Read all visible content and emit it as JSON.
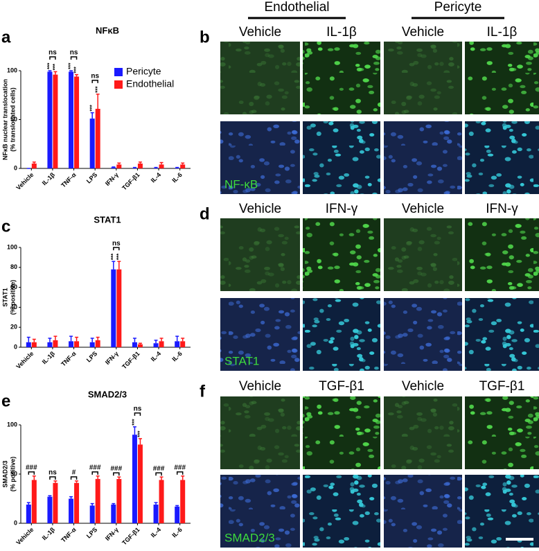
{
  "chart_data": [
    {
      "type": "bar",
      "panel_label": "a",
      "title": "NFκB",
      "y_label": [
        "NFκB nuclear translocation",
        "(% translocated cells)"
      ],
      "categories": [
        "Vehicle",
        "IL-1β",
        "TNF-α",
        "LPS",
        "IFN-γ",
        "TGF-β1",
        "IL-4",
        "IL-6"
      ],
      "series": [
        {
          "name": "Pericyte",
          "color": "#1a1aff",
          "values": [
            0,
            99,
            99,
            51,
            1,
            0.5,
            0.5,
            0.5
          ],
          "errors": [
            0,
            1,
            1,
            6,
            0.5,
            0.5,
            0.5,
            0.5
          ],
          "value_labels": [
            null,
            "***",
            "***",
            "***",
            null,
            null,
            null,
            null
          ]
        },
        {
          "name": "Endothelial",
          "color": "#ff1a1a",
          "values": [
            5,
            96,
            94,
            61,
            4,
            5,
            4,
            4
          ],
          "errors": [
            1.5,
            3,
            2,
            15,
            1.5,
            1.5,
            2,
            1.5
          ],
          "value_labels": [
            null,
            "***",
            "***",
            "***",
            null,
            null,
            null,
            null
          ]
        }
      ],
      "comparison_labels": [
        null,
        "ns",
        "ns",
        "ns",
        null,
        null,
        null,
        null
      ],
      "ylim": [
        0,
        100
      ],
      "yticks": [
        0,
        50,
        100
      ],
      "legend": "upper right"
    },
    {
      "type": "bar",
      "panel_label": "c",
      "title": "STAT1",
      "y_label": [
        "STAT1",
        "(% positive)"
      ],
      "categories": [
        "Vehicle",
        "IL-1β",
        "TNF-α",
        "LPS",
        "IFN-γ",
        "TGF-β1",
        "IL-4",
        "IL-6"
      ],
      "series": [
        {
          "name": "Pericyte",
          "color": "#1a1aff",
          "values": [
            5,
            5,
            6,
            5,
            78,
            5,
            4,
            6
          ],
          "errors": [
            5,
            4,
            5,
            4,
            8,
            4,
            3,
            5
          ],
          "value_labels": [
            null,
            null,
            null,
            null,
            "***",
            null,
            null,
            null
          ]
        },
        {
          "name": "Endothelial",
          "color": "#ff1a1a",
          "values": [
            5,
            7,
            6,
            7,
            78,
            3,
            6,
            6
          ],
          "errors": [
            3,
            4,
            4,
            3,
            8,
            1,
            3,
            3
          ],
          "value_labels": [
            null,
            null,
            null,
            null,
            "***",
            null,
            null,
            null
          ]
        }
      ],
      "comparison_labels": [
        null,
        null,
        null,
        null,
        "ns",
        null,
        null,
        null
      ],
      "ylim": [
        0,
        100
      ],
      "yticks": [
        0,
        20,
        40,
        60,
        80,
        100
      ]
    },
    {
      "type": "bar",
      "panel_label": "e",
      "title": "SMAD2/3",
      "y_label": [
        "SMAD2/3",
        "(% positive)"
      ],
      "categories": [
        "Vehicle",
        "IL-1β",
        "TNF-α",
        "LPS",
        "IFN-γ",
        "TGF-β1",
        "IL-4",
        "IL-6"
      ],
      "series": [
        {
          "name": "Pericyte",
          "color": "#1a1aff",
          "values": [
            19,
            27,
            25,
            18,
            19,
            90,
            19,
            17
          ],
          "errors": [
            2,
            1,
            2,
            2,
            1,
            8,
            2,
            1
          ],
          "value_labels": [
            null,
            null,
            null,
            null,
            null,
            "***",
            null,
            null
          ]
        },
        {
          "name": "Endothelial",
          "color": "#ff1a1a",
          "values": [
            44,
            41,
            41,
            45,
            45,
            80,
            44,
            44
          ],
          "errors": [
            4,
            2,
            2,
            3,
            2,
            6,
            3,
            4
          ],
          "value_labels": [
            null,
            null,
            null,
            null,
            null,
            "***",
            null,
            null
          ]
        }
      ],
      "comparison_labels": [
        "###",
        "ns",
        "#",
        "###",
        "###",
        "ns",
        "###",
        "###"
      ],
      "ylim": [
        0,
        100
      ],
      "yticks": [
        0,
        50,
        100
      ]
    }
  ],
  "images": {
    "headers": [
      "Endothelial",
      "Pericyte"
    ],
    "panels": [
      {
        "panel_label": "b",
        "columns": [
          "Vehicle",
          "IL-1β",
          "Vehicle",
          "IL-1β"
        ],
        "stain": "NF-κB"
      },
      {
        "panel_label": "d",
        "columns": [
          "Vehicle",
          "IFN-γ",
          "Vehicle",
          "IFN-γ"
        ],
        "stain": "STAT1"
      },
      {
        "panel_label": "f",
        "columns": [
          "Vehicle",
          "TGF-β1",
          "Vehicle",
          "TGF-β1"
        ],
        "stain": "SMAD2/3"
      }
    ]
  }
}
